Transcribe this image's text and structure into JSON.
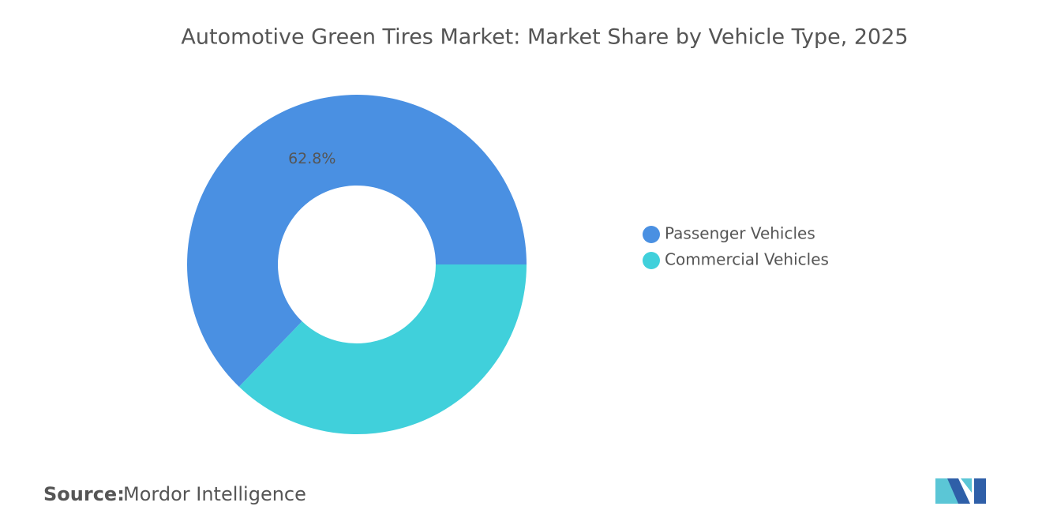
{
  "chart_data": {
    "type": "donut",
    "title": "Automotive Green Tires Market: Market Share by Vehicle Type, 2025",
    "categories": [
      "Passenger Vehicles",
      "Commercial Vehicles"
    ],
    "values": [
      62.8,
      37.2
    ],
    "value_labels": [
      "62.8%",
      null
    ],
    "colors": [
      "#4a90e2",
      "#40d0db"
    ],
    "legend": "right"
  },
  "source": {
    "label": "Source:",
    "text": "Mordor Intelligence"
  }
}
